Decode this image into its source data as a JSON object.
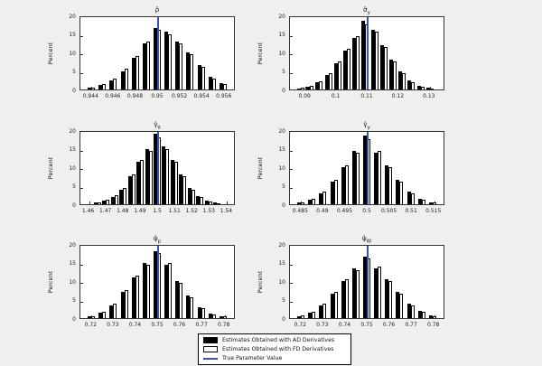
{
  "figure": {
    "background": "#f0efed",
    "colors": {
      "bar_ad": "#000000",
      "bar_fd": "#ffffff",
      "true_line": "#3c53a8",
      "axes_bg": "#ffffff"
    },
    "legend": {
      "items": [
        {
          "label": "Estimates Obtained with AD Derivatives",
          "type": "filled"
        },
        {
          "label": "Estimates Obtained with FD Derivatives",
          "type": "open"
        },
        {
          "label": "True Parameter Value",
          "type": "line"
        }
      ]
    }
  },
  "chart_data": [
    {
      "type": "bar",
      "title": {
        "base": "ρ̂",
        "sub": ""
      },
      "ylabel": "Percent",
      "ylim": [
        0,
        20
      ],
      "yticks": [
        0,
        5,
        10,
        15,
        20
      ],
      "xlim": [
        0.943,
        0.957
      ],
      "xticks": [
        "0.944",
        "0.946",
        "0.948",
        "0.95",
        "0.952",
        "0.954",
        "0.956"
      ],
      "true_value": 0.95,
      "bin_centers": [
        0.944,
        0.945,
        0.946,
        0.947,
        0.948,
        0.949,
        0.95,
        0.951,
        0.952,
        0.953,
        0.954,
        0.955,
        0.956
      ],
      "series": [
        {
          "name": "AD",
          "values": [
            0.5,
            1.2,
            2.5,
            5,
            8.5,
            12.5,
            16.5,
            15.5,
            13,
            10,
            6.5,
            3.5,
            1.8
          ]
        },
        {
          "name": "FD",
          "values": [
            0.6,
            1.5,
            3,
            5.5,
            9,
            13,
            16,
            15,
            12.5,
            9.5,
            6,
            3,
            1.5
          ]
        }
      ]
    },
    {
      "type": "bar",
      "title": {
        "base": "σ̂",
        "sub": "y"
      },
      "ylabel": "Percent",
      "ylim": [
        0,
        20
      ],
      "yticks": [
        0,
        5,
        10,
        15,
        20
      ],
      "xlim": [
        0.085,
        0.135
      ],
      "xticks": [
        "0.09",
        "0.1",
        "0.11",
        "0.12",
        "0.13"
      ],
      "true_value": 0.11,
      "bin_centers": [
        0.0885,
        0.0915,
        0.0945,
        0.0975,
        0.1005,
        0.1035,
        0.1065,
        0.1095,
        0.1125,
        0.1155,
        0.1185,
        0.1215,
        0.1245,
        0.1275,
        0.1305
      ],
      "series": [
        {
          "name": "AD",
          "values": [
            0.3,
            0.8,
            2,
            4,
            7,
            10.5,
            14,
            18.5,
            16,
            12,
            8,
            5,
            2.5,
            1,
            0.4
          ]
        },
        {
          "name": "FD",
          "values": [
            0.4,
            1,
            2.3,
            4.5,
            7.5,
            11,
            14.5,
            17.5,
            15.5,
            11.5,
            7.5,
            4.5,
            2,
            0.8,
            0.3
          ]
        }
      ]
    },
    {
      "type": "bar",
      "title": {
        "base": "γ̂",
        "sub": "π"
      },
      "ylabel": "Percent",
      "ylim": [
        0,
        20
      ],
      "yticks": [
        0,
        5,
        10,
        15,
        20
      ],
      "xlim": [
        1.455,
        1.545
      ],
      "xticks": [
        "1.46",
        "1.47",
        "1.48",
        "1.49",
        "1.5",
        "1.51",
        "1.52",
        "1.53",
        "1.54"
      ],
      "true_value": 1.5,
      "bin_centers": [
        1.465,
        1.47,
        1.475,
        1.48,
        1.485,
        1.49,
        1.495,
        1.5,
        1.505,
        1.51,
        1.515,
        1.52,
        1.525,
        1.53,
        1.535
      ],
      "series": [
        {
          "name": "AD",
          "values": [
            0.4,
            1,
            2,
            4,
            7.5,
            11.5,
            15,
            19,
            15.5,
            12,
            8,
            4.5,
            2.2,
            1,
            0.4
          ]
        },
        {
          "name": "FD",
          "values": [
            0.5,
            1.2,
            2.4,
            4.5,
            8,
            12,
            14.5,
            18,
            15,
            11.5,
            7.5,
            4,
            2,
            0.8,
            0.3
          ]
        }
      ]
    },
    {
      "type": "bar",
      "title": {
        "base": "γ̂",
        "sub": "y"
      },
      "ylabel": "Percent",
      "ylim": [
        0,
        20
      ],
      "yticks": [
        0,
        5,
        10,
        15,
        20
      ],
      "xlim": [
        0.4825,
        0.5175
      ],
      "xticks": [
        "0.485",
        "0.49",
        "0.495",
        "0.5",
        "0.505",
        "0.51",
        "0.515"
      ],
      "true_value": 0.5,
      "bin_centers": [
        0.485,
        0.4875,
        0.49,
        0.4925,
        0.495,
        0.4975,
        0.5,
        0.5025,
        0.505,
        0.5075,
        0.51,
        0.5125,
        0.515
      ],
      "series": [
        {
          "name": "AD",
          "values": [
            0.5,
            1.2,
            3,
            6,
            10,
            14.5,
            18.5,
            14,
            10.5,
            6.5,
            3.5,
            1.5,
            0.6
          ]
        },
        {
          "name": "FD",
          "values": [
            0.6,
            1.5,
            3.5,
            6.5,
            10.5,
            14,
            17.5,
            14.5,
            10,
            6,
            3,
            1.2,
            0.5
          ]
        }
      ]
    },
    {
      "type": "bar",
      "title": {
        "base": "ψ̂",
        "sub": "p"
      },
      "ylabel": "Percent",
      "ylim": [
        0,
        20
      ],
      "yticks": [
        0,
        5,
        10,
        15,
        20
      ],
      "xlim": [
        0.715,
        0.785
      ],
      "xticks": [
        "0.72",
        "0.73",
        "0.74",
        "0.75",
        "0.76",
        "0.77",
        "0.78"
      ],
      "true_value": 0.75,
      "bin_centers": [
        0.72,
        0.725,
        0.73,
        0.735,
        0.74,
        0.745,
        0.75,
        0.755,
        0.76,
        0.765,
        0.77,
        0.775,
        0.78
      ],
      "series": [
        {
          "name": "AD",
          "values": [
            0.5,
            1.5,
            3.5,
            7,
            11,
            15,
            18,
            14.5,
            10,
            6,
            3,
            1.2,
            0.5
          ]
        },
        {
          "name": "FD",
          "values": [
            0.6,
            1.8,
            4,
            7.5,
            11.5,
            14.5,
            17.5,
            15,
            9.5,
            5.5,
            2.6,
            1,
            0.4
          ]
        }
      ]
    },
    {
      "type": "bar",
      "title": {
        "base": "ψ̂",
        "sub": "W"
      },
      "ylabel": "Percent",
      "ylim": [
        0,
        20
      ],
      "yticks": [
        0,
        5,
        10,
        15,
        20
      ],
      "xlim": [
        0.715,
        0.785
      ],
      "xticks": [
        "0.72",
        "0.73",
        "0.74",
        "0.75",
        "0.76",
        "0.77",
        "0.78"
      ],
      "true_value": 0.75,
      "bin_centers": [
        0.72,
        0.725,
        0.73,
        0.735,
        0.74,
        0.745,
        0.75,
        0.755,
        0.76,
        0.765,
        0.77,
        0.775,
        0.78
      ],
      "series": [
        {
          "name": "AD",
          "values": [
            0.6,
            1.5,
            3.5,
            6.5,
            10,
            13.5,
            16.5,
            13.5,
            10.5,
            7,
            4,
            2,
            0.8
          ]
        },
        {
          "name": "FD",
          "values": [
            0.7,
            1.8,
            4,
            7,
            10.5,
            13,
            16,
            14,
            10,
            6.5,
            3.5,
            1.6,
            0.6
          ]
        }
      ]
    }
  ]
}
